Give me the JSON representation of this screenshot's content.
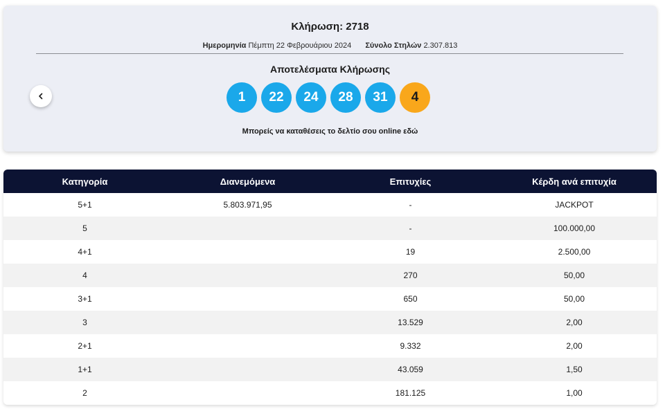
{
  "draw": {
    "title": "Κλήρωση: 2718",
    "date_label": "Ημερομηνία",
    "date_value": "Πέμπτη 22 Φεβρουάριου 2024",
    "columns_label": "Σύνολο Στηλών",
    "columns_value": "2.307.813",
    "results_title": "Αποτελέσματα Κλήρωσης",
    "numbers": [
      "1",
      "22",
      "24",
      "28",
      "31"
    ],
    "bonus_number": "4",
    "online_text": "Μπορείς να καταθέσεις το δελτίο σου online εδώ",
    "prev_icon": "chevron-left-icon",
    "ball_color": "#1aa8ea",
    "bonus_color": "#f9a71b"
  },
  "table": {
    "headers": [
      "Κατηγορία",
      "Διανεμόμενα",
      "Επιτυχίες",
      "Κέρδη ανά επιτυχία"
    ],
    "header_color": "#0c1333",
    "rows": [
      {
        "category": "5+1",
        "distributed": "5.803.971,95",
        "winners": "-",
        "prize": "JACKPOT"
      },
      {
        "category": "5",
        "distributed": "",
        "winners": "-",
        "prize": "100.000,00"
      },
      {
        "category": "4+1",
        "distributed": "",
        "winners": "19",
        "prize": "2.500,00"
      },
      {
        "category": "4",
        "distributed": "",
        "winners": "270",
        "prize": "50,00"
      },
      {
        "category": "3+1",
        "distributed": "",
        "winners": "650",
        "prize": "50,00"
      },
      {
        "category": "3",
        "distributed": "",
        "winners": "13.529",
        "prize": "2,00"
      },
      {
        "category": "2+1",
        "distributed": "",
        "winners": "9.332",
        "prize": "2,00"
      },
      {
        "category": "1+1",
        "distributed": "",
        "winners": "43.059",
        "prize": "1,50"
      },
      {
        "category": "2",
        "distributed": "",
        "winners": "181.125",
        "prize": "1,00"
      }
    ]
  }
}
